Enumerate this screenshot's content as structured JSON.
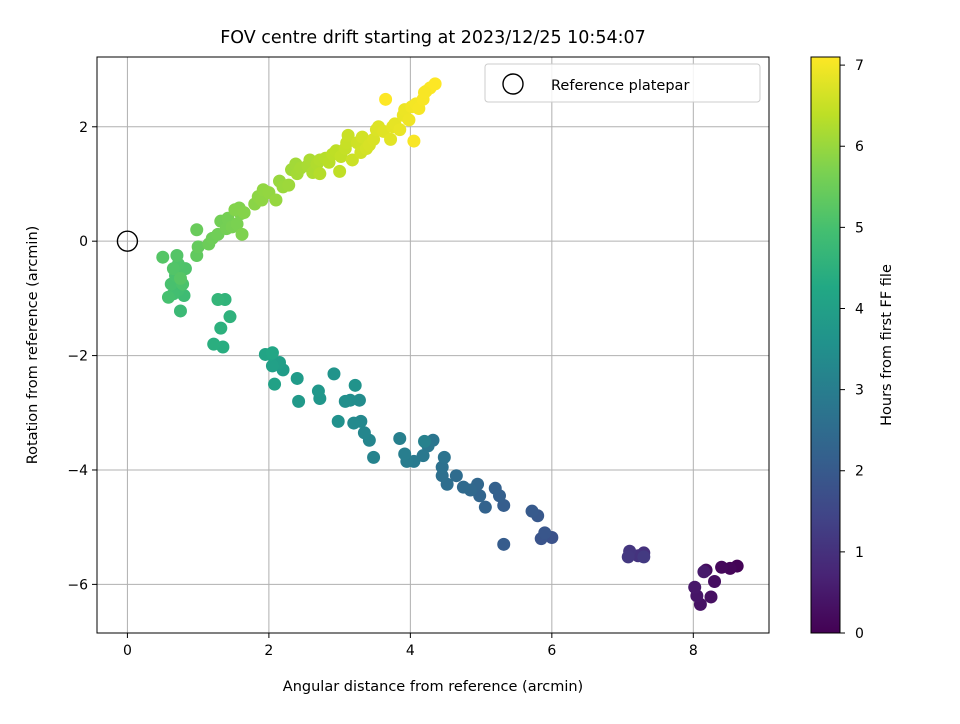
{
  "chart_data": {
    "type": "scatter",
    "title": "FOV centre drift starting at 2023/12/25 10:54:07",
    "xlabel": "Angular distance from reference (arcmin)",
    "ylabel": "Rotation from reference (arcmin)",
    "xlim": [
      -0.43,
      9.07
    ],
    "ylim": [
      -6.85,
      3.22
    ],
    "xticks": [
      0,
      2,
      4,
      6,
      8
    ],
    "yticks": [
      -6,
      -4,
      -2,
      0,
      2
    ],
    "xtick_labels": [
      "0",
      "2",
      "4",
      "6",
      "8"
    ],
    "ytick_labels": [
      "−6",
      "−4",
      "−2",
      "0",
      "2"
    ],
    "grid": true,
    "legend": {
      "position": "top-right",
      "entries": [
        "Reference platepar"
      ]
    },
    "colorbar": {
      "label": "Hours from first FF file",
      "range": [
        0,
        7.1
      ],
      "ticks": [
        0,
        1,
        2,
        3,
        4,
        5,
        6,
        7
      ],
      "tick_labels": [
        "0",
        "1",
        "2",
        "3",
        "4",
        "5",
        "6",
        "7"
      ],
      "colormap": "viridis"
    },
    "reference_point": {
      "label": "Reference platepar",
      "x": 0,
      "y": 0
    },
    "points": [
      [
        8.62,
        -5.68,
        0.05
      ],
      [
        8.52,
        -5.72,
        0.1
      ],
      [
        8.4,
        -5.7,
        0.15
      ],
      [
        8.18,
        -5.75,
        0.2
      ],
      [
        8.3,
        -5.95,
        0.25
      ],
      [
        8.25,
        -6.22,
        0.3
      ],
      [
        8.1,
        -6.35,
        0.35
      ],
      [
        8.05,
        -6.2,
        0.4
      ],
      [
        8.02,
        -6.05,
        0.45
      ],
      [
        8.15,
        -5.78,
        0.5
      ],
      [
        7.3,
        -5.45,
        1.0
      ],
      [
        7.22,
        -5.5,
        1.05
      ],
      [
        7.1,
        -5.42,
        1.1
      ],
      [
        7.08,
        -5.52,
        1.15
      ],
      [
        7.3,
        -5.52,
        1.2
      ],
      [
        6.0,
        -5.18,
        1.8
      ],
      [
        5.85,
        -5.2,
        1.85
      ],
      [
        5.9,
        -5.1,
        1.9
      ],
      [
        5.8,
        -4.8,
        1.95
      ],
      [
        5.72,
        -4.72,
        2.0
      ],
      [
        5.32,
        -5.3,
        2.05
      ],
      [
        5.32,
        -4.62,
        2.1
      ],
      [
        5.26,
        -4.45,
        2.15
      ],
      [
        5.2,
        -4.32,
        2.2
      ],
      [
        5.06,
        -4.65,
        2.25
      ],
      [
        4.98,
        -4.45,
        2.3
      ],
      [
        4.95,
        -4.25,
        2.35
      ],
      [
        4.85,
        -4.35,
        2.4
      ],
      [
        4.75,
        -4.3,
        2.45
      ],
      [
        4.65,
        -4.1,
        2.5
      ],
      [
        4.52,
        -4.25,
        2.55
      ],
      [
        4.45,
        -4.1,
        2.6
      ],
      [
        4.45,
        -3.95,
        2.65
      ],
      [
        4.48,
        -3.78,
        2.7
      ],
      [
        4.32,
        -3.48,
        2.75
      ],
      [
        4.25,
        -3.58,
        2.8
      ],
      [
        4.18,
        -3.75,
        2.85
      ],
      [
        4.05,
        -3.85,
        2.9
      ],
      [
        3.95,
        -3.85,
        2.95
      ],
      [
        3.92,
        -3.72,
        3.0
      ],
      [
        3.85,
        -3.45,
        3.05
      ],
      [
        4.2,
        -3.5,
        3.1
      ],
      [
        3.48,
        -3.78,
        3.15
      ],
      [
        3.42,
        -3.48,
        3.2
      ],
      [
        3.35,
        -3.35,
        3.25
      ],
      [
        3.3,
        -3.15,
        3.3
      ],
      [
        3.2,
        -3.18,
        3.35
      ],
      [
        3.28,
        -2.78,
        3.4
      ],
      [
        3.15,
        -2.78,
        3.45
      ],
      [
        3.08,
        -2.8,
        3.5
      ],
      [
        2.98,
        -3.15,
        3.55
      ],
      [
        3.22,
        -2.52,
        3.6
      ],
      [
        2.92,
        -2.32,
        3.65
      ],
      [
        2.72,
        -2.75,
        3.7
      ],
      [
        2.7,
        -2.62,
        3.75
      ],
      [
        2.42,
        -2.8,
        3.8
      ],
      [
        2.4,
        -2.4,
        3.85
      ],
      [
        2.2,
        -2.25,
        3.9
      ],
      [
        2.15,
        -2.12,
        3.95
      ],
      [
        2.05,
        -2.18,
        4.0
      ],
      [
        2.08,
        -2.5,
        4.05
      ],
      [
        2.02,
        -1.98,
        4.1
      ],
      [
        1.95,
        -1.98,
        4.15
      ],
      [
        2.05,
        -1.95,
        4.2
      ],
      [
        1.35,
        -1.85,
        4.4
      ],
      [
        1.22,
        -1.8,
        4.45
      ],
      [
        1.32,
        -1.52,
        4.5
      ],
      [
        1.45,
        -1.32,
        4.55
      ],
      [
        1.38,
        -1.02,
        4.6
      ],
      [
        1.28,
        -1.02,
        4.65
      ],
      [
        0.75,
        -1.22,
        4.8
      ],
      [
        0.8,
        -0.95,
        4.85
      ],
      [
        0.72,
        -0.85,
        4.9
      ],
      [
        0.65,
        -0.92,
        4.95
      ],
      [
        0.58,
        -0.98,
        5.0
      ],
      [
        0.62,
        -0.75,
        5.02
      ],
      [
        0.68,
        -0.6,
        5.05
      ],
      [
        0.78,
        -0.75,
        5.08
      ],
      [
        0.82,
        -0.48,
        5.1
      ],
      [
        0.72,
        -0.4,
        5.12
      ],
      [
        0.65,
        -0.48,
        5.15
      ],
      [
        0.7,
        -0.25,
        5.18
      ],
      [
        0.5,
        -0.28,
        5.2
      ],
      [
        0.75,
        -0.65,
        5.22
      ],
      [
        0.98,
        -0.25,
        5.35
      ],
      [
        1.0,
        -0.1,
        5.4
      ],
      [
        0.98,
        0.2,
        5.45
      ],
      [
        1.15,
        -0.05,
        5.5
      ],
      [
        1.2,
        0.05,
        5.52
      ],
      [
        1.28,
        0.12,
        5.55
      ],
      [
        1.32,
        0.35,
        5.58
      ],
      [
        1.4,
        0.22,
        5.6
      ],
      [
        1.42,
        0.4,
        5.62
      ],
      [
        1.48,
        0.25,
        5.65
      ],
      [
        1.55,
        0.3,
        5.68
      ],
      [
        1.6,
        0.48,
        5.7
      ],
      [
        1.62,
        0.12,
        5.72
      ],
      [
        1.58,
        0.58,
        5.75
      ],
      [
        1.52,
        0.55,
        5.78
      ],
      [
        1.65,
        0.5,
        5.8
      ],
      [
        1.8,
        0.65,
        5.85
      ],
      [
        1.85,
        0.78,
        5.88
      ],
      [
        1.9,
        0.72,
        5.9
      ],
      [
        1.92,
        0.9,
        5.92
      ],
      [
        2.0,
        0.85,
        5.95
      ],
      [
        2.1,
        0.72,
        5.98
      ],
      [
        2.15,
        1.05,
        6.0
      ],
      [
        2.2,
        0.95,
        6.02
      ],
      [
        2.28,
        0.98,
        6.05
      ],
      [
        2.32,
        1.25,
        6.08
      ],
      [
        2.38,
        1.35,
        6.1
      ],
      [
        2.4,
        1.18,
        6.12
      ],
      [
        2.45,
        1.28,
        6.15
      ],
      [
        2.55,
        1.32,
        6.18
      ],
      [
        2.58,
        1.42,
        6.2
      ],
      [
        2.62,
        1.2,
        6.22
      ],
      [
        2.68,
        1.35,
        6.25
      ],
      [
        2.72,
        1.42,
        6.28
      ],
      [
        2.72,
        1.18,
        6.3
      ],
      [
        2.8,
        1.45,
        6.32
      ],
      [
        2.85,
        1.38,
        6.35
      ],
      [
        2.9,
        1.52,
        6.38
      ],
      [
        2.95,
        1.58,
        6.4
      ],
      [
        3.0,
        1.22,
        6.42
      ],
      [
        3.02,
        1.48,
        6.45
      ],
      [
        3.08,
        1.62,
        6.48
      ],
      [
        3.1,
        1.72,
        6.5
      ],
      [
        3.12,
        1.85,
        6.52
      ],
      [
        3.18,
        1.42,
        6.55
      ],
      [
        3.25,
        1.72,
        6.58
      ],
      [
        3.3,
        1.55,
        6.6
      ],
      [
        3.32,
        1.82,
        6.62
      ],
      [
        3.38,
        1.62,
        6.65
      ],
      [
        3.42,
        1.68,
        6.68
      ],
      [
        3.48,
        1.78,
        6.7
      ],
      [
        3.52,
        1.95,
        6.72
      ],
      [
        3.55,
        2.0,
        6.75
      ],
      [
        3.62,
        1.92,
        6.78
      ],
      [
        3.72,
        1.78,
        6.8
      ],
      [
        3.75,
        2.0,
        6.82
      ],
      [
        3.78,
        2.05,
        6.85
      ],
      [
        3.85,
        1.95,
        6.88
      ],
      [
        3.9,
        2.2,
        6.9
      ],
      [
        3.92,
        2.3,
        6.92
      ],
      [
        3.98,
        2.12,
        6.95
      ],
      [
        4.02,
        2.35,
        6.98
      ],
      [
        4.08,
        2.4,
        7.0
      ],
      [
        4.12,
        2.32,
        7.02
      ],
      [
        4.18,
        2.48,
        7.04
      ],
      [
        4.22,
        2.62,
        7.06
      ],
      [
        4.28,
        2.68,
        7.08
      ],
      [
        4.35,
        2.75,
        7.1
      ],
      [
        3.65,
        2.48,
        7.1
      ],
      [
        4.05,
        1.75,
        7.05
      ],
      [
        4.2,
        2.6,
        7.05
      ]
    ]
  }
}
